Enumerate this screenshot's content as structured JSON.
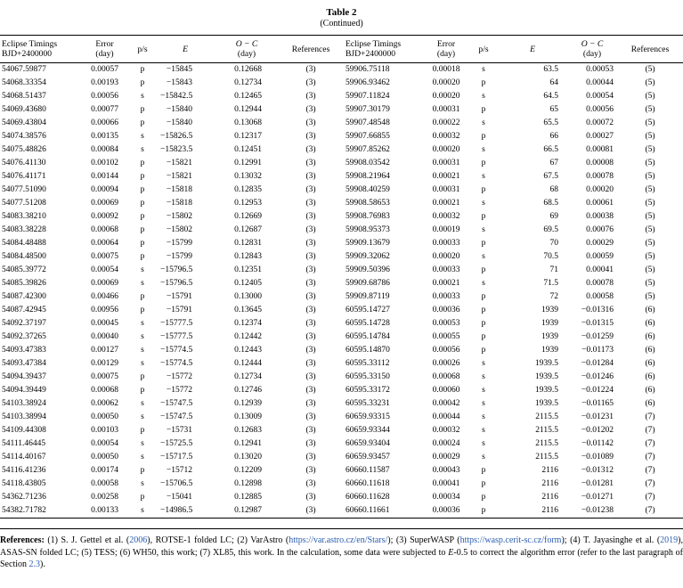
{
  "page": {
    "title": "Table 2",
    "subtitle": "(Continued)"
  },
  "colors": {
    "background": "#ffffff",
    "text": "#000000",
    "link": "#2a5db0",
    "rule": "#000000"
  },
  "table": {
    "columns": [
      {
        "line1": "Eclipse Timings",
        "line2": "BJD+2400000",
        "italic": false
      },
      {
        "line1": "Error",
        "line2": "(day)",
        "italic": false
      },
      {
        "line1": "p/s",
        "line2": "",
        "italic": false
      },
      {
        "line1": "E",
        "line2": "",
        "italic": true
      },
      {
        "line1": "O − C",
        "line2": "(day)",
        "italic": true
      },
      {
        "line1": "References",
        "line2": "",
        "italic": false
      }
    ],
    "left_rows": [
      [
        "54067.59877",
        "0.00057",
        "p",
        "−15845",
        "0.12668",
        "(3)"
      ],
      [
        "54068.33354",
        "0.00193",
        "p",
        "−15843",
        "0.12734",
        "(3)"
      ],
      [
        "54068.51437",
        "0.00056",
        "s",
        "−15842.5",
        "0.12465",
        "(3)"
      ],
      [
        "54069.43680",
        "0.00077",
        "p",
        "−15840",
        "0.12944",
        "(3)"
      ],
      [
        "54069.43804",
        "0.00066",
        "p",
        "−15840",
        "0.13068",
        "(3)"
      ],
      [
        "54074.38576",
        "0.00135",
        "s",
        "−15826.5",
        "0.12317",
        "(3)"
      ],
      [
        "54075.48826",
        "0.00084",
        "s",
        "−15823.5",
        "0.12451",
        "(3)"
      ],
      [
        "54076.41130",
        "0.00102",
        "p",
        "−15821",
        "0.12991",
        "(3)"
      ],
      [
        "54076.41171",
        "0.00144",
        "p",
        "−15821",
        "0.13032",
        "(3)"
      ],
      [
        "54077.51090",
        "0.00094",
        "p",
        "−15818",
        "0.12835",
        "(3)"
      ],
      [
        "54077.51208",
        "0.00069",
        "p",
        "−15818",
        "0.12953",
        "(3)"
      ],
      [
        "54083.38210",
        "0.00092",
        "p",
        "−15802",
        "0.12669",
        "(3)"
      ],
      [
        "54083.38228",
        "0.00068",
        "p",
        "−15802",
        "0.12687",
        "(3)"
      ],
      [
        "54084.48488",
        "0.00064",
        "p",
        "−15799",
        "0.12831",
        "(3)"
      ],
      [
        "54084.48500",
        "0.00075",
        "p",
        "−15799",
        "0.12843",
        "(3)"
      ],
      [
        "54085.39772",
        "0.00054",
        "s",
        "−15796.5",
        "0.12351",
        "(3)"
      ],
      [
        "54085.39826",
        "0.00069",
        "s",
        "−15796.5",
        "0.12405",
        "(3)"
      ],
      [
        "54087.42300",
        "0.00466",
        "p",
        "−15791",
        "0.13000",
        "(3)"
      ],
      [
        "54087.42945",
        "0.00956",
        "p",
        "−15791",
        "0.13645",
        "(3)"
      ],
      [
        "54092.37197",
        "0.00045",
        "s",
        "−15777.5",
        "0.12374",
        "(3)"
      ],
      [
        "54092.37265",
        "0.00040",
        "s",
        "−15777.5",
        "0.12442",
        "(3)"
      ],
      [
        "54093.47383",
        "0.00127",
        "s",
        "−15774.5",
        "0.12443",
        "(3)"
      ],
      [
        "54093.47384",
        "0.00129",
        "s",
        "−15774.5",
        "0.12444",
        "(3)"
      ],
      [
        "54094.39437",
        "0.00075",
        "p",
        "−15772",
        "0.12734",
        "(3)"
      ],
      [
        "54094.39449",
        "0.00068",
        "p",
        "−15772",
        "0.12746",
        "(3)"
      ],
      [
        "54103.38924",
        "0.00062",
        "s",
        "−15747.5",
        "0.12939",
        "(3)"
      ],
      [
        "54103.38994",
        "0.00050",
        "s",
        "−15747.5",
        "0.13009",
        "(3)"
      ],
      [
        "54109.44308",
        "0.00103",
        "p",
        "−15731",
        "0.12683",
        "(3)"
      ],
      [
        "54111.46445",
        "0.00054",
        "s",
        "−15725.5",
        "0.12941",
        "(3)"
      ],
      [
        "54114.40167",
        "0.00050",
        "s",
        "−15717.5",
        "0.13020",
        "(3)"
      ],
      [
        "54116.41236",
        "0.00174",
        "p",
        "−15712",
        "0.12209",
        "(3)"
      ],
      [
        "54118.43805",
        "0.00058",
        "s",
        "−15706.5",
        "0.12898",
        "(3)"
      ],
      [
        "54362.71236",
        "0.00258",
        "p",
        "−15041",
        "0.12885",
        "(3)"
      ],
      [
        "54382.71782",
        "0.00133",
        "s",
        "−14986.5",
        "0.12987",
        "(3)"
      ]
    ],
    "right_rows": [
      [
        "59906.75118",
        "0.00018",
        "s",
        "63.5",
        "0.00053",
        "(5)"
      ],
      [
        "59906.93462",
        "0.00020",
        "p",
        "64",
        "0.00044",
        "(5)"
      ],
      [
        "59907.11824",
        "0.00020",
        "s",
        "64.5",
        "0.00054",
        "(5)"
      ],
      [
        "59907.30179",
        "0.00031",
        "p",
        "65",
        "0.00056",
        "(5)"
      ],
      [
        "59907.48548",
        "0.00022",
        "s",
        "65.5",
        "0.00072",
        "(5)"
      ],
      [
        "59907.66855",
        "0.00032",
        "p",
        "66",
        "0.00027",
        "(5)"
      ],
      [
        "59907.85262",
        "0.00020",
        "s",
        "66.5",
        "0.00081",
        "(5)"
      ],
      [
        "59908.03542",
        "0.00031",
        "p",
        "67",
        "0.00008",
        "(5)"
      ],
      [
        "59908.21964",
        "0.00021",
        "s",
        "67.5",
        "0.00078",
        "(5)"
      ],
      [
        "59908.40259",
        "0.00031",
        "p",
        "68",
        "0.00020",
        "(5)"
      ],
      [
        "59908.58653",
        "0.00021",
        "s",
        "68.5",
        "0.00061",
        "(5)"
      ],
      [
        "59908.76983",
        "0.00032",
        "p",
        "69",
        "0.00038",
        "(5)"
      ],
      [
        "59908.95373",
        "0.00019",
        "s",
        "69.5",
        "0.00076",
        "(5)"
      ],
      [
        "59909.13679",
        "0.00033",
        "p",
        "70",
        "0.00029",
        "(5)"
      ],
      [
        "59909.32062",
        "0.00020",
        "s",
        "70.5",
        "0.00059",
        "(5)"
      ],
      [
        "59909.50396",
        "0.00033",
        "p",
        "71",
        "0.00041",
        "(5)"
      ],
      [
        "59909.68786",
        "0.00021",
        "s",
        "71.5",
        "0.00078",
        "(5)"
      ],
      [
        "59909.87119",
        "0.00033",
        "p",
        "72",
        "0.00058",
        "(5)"
      ],
      [
        "60595.14727",
        "0.00036",
        "p",
        "1939",
        "−0.01316",
        "(6)"
      ],
      [
        "60595.14728",
        "0.00053",
        "p",
        "1939",
        "−0.01315",
        "(6)"
      ],
      [
        "60595.14784",
        "0.00055",
        "p",
        "1939",
        "−0.01259",
        "(6)"
      ],
      [
        "60595.14870",
        "0.00056",
        "p",
        "1939",
        "−0.01173",
        "(6)"
      ],
      [
        "60595.33112",
        "0.00026",
        "s",
        "1939.5",
        "−0.01284",
        "(6)"
      ],
      [
        "60595.33150",
        "0.00068",
        "s",
        "1939.5",
        "−0.01246",
        "(6)"
      ],
      [
        "60595.33172",
        "0.00060",
        "s",
        "1939.5",
        "−0.01224",
        "(6)"
      ],
      [
        "60595.33231",
        "0.00042",
        "s",
        "1939.5",
        "−0.01165",
        "(6)"
      ],
      [
        "60659.93315",
        "0.00044",
        "s",
        "2115.5",
        "−0.01231",
        "(7)"
      ],
      [
        "60659.93344",
        "0.00032",
        "s",
        "2115.5",
        "−0.01202",
        "(7)"
      ],
      [
        "60659.93404",
        "0.00024",
        "s",
        "2115.5",
        "−0.01142",
        "(7)"
      ],
      [
        "60659.93457",
        "0.00029",
        "s",
        "2115.5",
        "−0.01089",
        "(7)"
      ],
      [
        "60660.11587",
        "0.00043",
        "p",
        "2116",
        "−0.01312",
        "(7)"
      ],
      [
        "60660.11618",
        "0.00041",
        "p",
        "2116",
        "−0.01281",
        "(7)"
      ],
      [
        "60660.11628",
        "0.00034",
        "p",
        "2116",
        "−0.01271",
        "(7)"
      ],
      [
        "60660.11661",
        "0.00036",
        "p",
        "2116",
        "−0.01238",
        "(7)"
      ]
    ]
  },
  "footnote": {
    "segments": [
      {
        "text": "References: ",
        "bold": true
      },
      {
        "text": "(1) S. J. Gettel et al. ("
      },
      {
        "text": "2006",
        "link": true
      },
      {
        "text": "), ROTSE-1 folded LC; (2) VarAstro ("
      },
      {
        "text": "https://var.astro.cz/en/Stars/",
        "link": true
      },
      {
        "text": "); (3) SuperWASP ("
      },
      {
        "text": "https://wasp.cerit-sc.cz/form",
        "link": true
      },
      {
        "text": "); (4) T. Jayasinghe et al. ("
      },
      {
        "text": "2019",
        "link": true
      },
      {
        "text": "), ASAS-SN folded LC; (5) TESS; (6) WH50, this work; (7) XL85, this work. In the calculation, some data were subjected to "
      },
      {
        "text": "E",
        "italic": true
      },
      {
        "text": "-0.5 to correct the algorithm error (refer to the last paragraph of Section "
      },
      {
        "text": "2.3",
        "link": true
      },
      {
        "text": ")."
      }
    ]
  }
}
